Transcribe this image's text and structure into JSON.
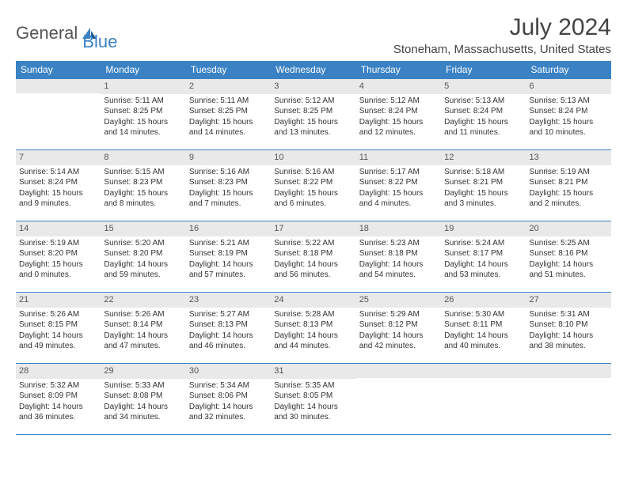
{
  "brand": {
    "general": "General",
    "blue": "Blue"
  },
  "title": {
    "month": "July 2024",
    "location": "Stoneham, Massachusetts, United States"
  },
  "colors": {
    "header_bg": "#3b82c4",
    "header_fg": "#ffffff",
    "daynum_bg": "#e9e9e9",
    "rule": "#3b82c4",
    "text": "#333333"
  },
  "weekdays": [
    "Sunday",
    "Monday",
    "Tuesday",
    "Wednesday",
    "Thursday",
    "Friday",
    "Saturday"
  ],
  "weeks": [
    [
      {
        "n": "",
        "sr": "",
        "ss": "",
        "dl": ""
      },
      {
        "n": "1",
        "sr": "Sunrise: 5:11 AM",
        "ss": "Sunset: 8:25 PM",
        "dl": "Daylight: 15 hours and 14 minutes."
      },
      {
        "n": "2",
        "sr": "Sunrise: 5:11 AM",
        "ss": "Sunset: 8:25 PM",
        "dl": "Daylight: 15 hours and 14 minutes."
      },
      {
        "n": "3",
        "sr": "Sunrise: 5:12 AM",
        "ss": "Sunset: 8:25 PM",
        "dl": "Daylight: 15 hours and 13 minutes."
      },
      {
        "n": "4",
        "sr": "Sunrise: 5:12 AM",
        "ss": "Sunset: 8:24 PM",
        "dl": "Daylight: 15 hours and 12 minutes."
      },
      {
        "n": "5",
        "sr": "Sunrise: 5:13 AM",
        "ss": "Sunset: 8:24 PM",
        "dl": "Daylight: 15 hours and 11 minutes."
      },
      {
        "n": "6",
        "sr": "Sunrise: 5:13 AM",
        "ss": "Sunset: 8:24 PM",
        "dl": "Daylight: 15 hours and 10 minutes."
      }
    ],
    [
      {
        "n": "7",
        "sr": "Sunrise: 5:14 AM",
        "ss": "Sunset: 8:24 PM",
        "dl": "Daylight: 15 hours and 9 minutes."
      },
      {
        "n": "8",
        "sr": "Sunrise: 5:15 AM",
        "ss": "Sunset: 8:23 PM",
        "dl": "Daylight: 15 hours and 8 minutes."
      },
      {
        "n": "9",
        "sr": "Sunrise: 5:16 AM",
        "ss": "Sunset: 8:23 PM",
        "dl": "Daylight: 15 hours and 7 minutes."
      },
      {
        "n": "10",
        "sr": "Sunrise: 5:16 AM",
        "ss": "Sunset: 8:22 PM",
        "dl": "Daylight: 15 hours and 6 minutes."
      },
      {
        "n": "11",
        "sr": "Sunrise: 5:17 AM",
        "ss": "Sunset: 8:22 PM",
        "dl": "Daylight: 15 hours and 4 minutes."
      },
      {
        "n": "12",
        "sr": "Sunrise: 5:18 AM",
        "ss": "Sunset: 8:21 PM",
        "dl": "Daylight: 15 hours and 3 minutes."
      },
      {
        "n": "13",
        "sr": "Sunrise: 5:19 AM",
        "ss": "Sunset: 8:21 PM",
        "dl": "Daylight: 15 hours and 2 minutes."
      }
    ],
    [
      {
        "n": "14",
        "sr": "Sunrise: 5:19 AM",
        "ss": "Sunset: 8:20 PM",
        "dl": "Daylight: 15 hours and 0 minutes."
      },
      {
        "n": "15",
        "sr": "Sunrise: 5:20 AM",
        "ss": "Sunset: 8:20 PM",
        "dl": "Daylight: 14 hours and 59 minutes."
      },
      {
        "n": "16",
        "sr": "Sunrise: 5:21 AM",
        "ss": "Sunset: 8:19 PM",
        "dl": "Daylight: 14 hours and 57 minutes."
      },
      {
        "n": "17",
        "sr": "Sunrise: 5:22 AM",
        "ss": "Sunset: 8:18 PM",
        "dl": "Daylight: 14 hours and 56 minutes."
      },
      {
        "n": "18",
        "sr": "Sunrise: 5:23 AM",
        "ss": "Sunset: 8:18 PM",
        "dl": "Daylight: 14 hours and 54 minutes."
      },
      {
        "n": "19",
        "sr": "Sunrise: 5:24 AM",
        "ss": "Sunset: 8:17 PM",
        "dl": "Daylight: 14 hours and 53 minutes."
      },
      {
        "n": "20",
        "sr": "Sunrise: 5:25 AM",
        "ss": "Sunset: 8:16 PM",
        "dl": "Daylight: 14 hours and 51 minutes."
      }
    ],
    [
      {
        "n": "21",
        "sr": "Sunrise: 5:26 AM",
        "ss": "Sunset: 8:15 PM",
        "dl": "Daylight: 14 hours and 49 minutes."
      },
      {
        "n": "22",
        "sr": "Sunrise: 5:26 AM",
        "ss": "Sunset: 8:14 PM",
        "dl": "Daylight: 14 hours and 47 minutes."
      },
      {
        "n": "23",
        "sr": "Sunrise: 5:27 AM",
        "ss": "Sunset: 8:13 PM",
        "dl": "Daylight: 14 hours and 46 minutes."
      },
      {
        "n": "24",
        "sr": "Sunrise: 5:28 AM",
        "ss": "Sunset: 8:13 PM",
        "dl": "Daylight: 14 hours and 44 minutes."
      },
      {
        "n": "25",
        "sr": "Sunrise: 5:29 AM",
        "ss": "Sunset: 8:12 PM",
        "dl": "Daylight: 14 hours and 42 minutes."
      },
      {
        "n": "26",
        "sr": "Sunrise: 5:30 AM",
        "ss": "Sunset: 8:11 PM",
        "dl": "Daylight: 14 hours and 40 minutes."
      },
      {
        "n": "27",
        "sr": "Sunrise: 5:31 AM",
        "ss": "Sunset: 8:10 PM",
        "dl": "Daylight: 14 hours and 38 minutes."
      }
    ],
    [
      {
        "n": "28",
        "sr": "Sunrise: 5:32 AM",
        "ss": "Sunset: 8:09 PM",
        "dl": "Daylight: 14 hours and 36 minutes."
      },
      {
        "n": "29",
        "sr": "Sunrise: 5:33 AM",
        "ss": "Sunset: 8:08 PM",
        "dl": "Daylight: 14 hours and 34 minutes."
      },
      {
        "n": "30",
        "sr": "Sunrise: 5:34 AM",
        "ss": "Sunset: 8:06 PM",
        "dl": "Daylight: 14 hours and 32 minutes."
      },
      {
        "n": "31",
        "sr": "Sunrise: 5:35 AM",
        "ss": "Sunset: 8:05 PM",
        "dl": "Daylight: 14 hours and 30 minutes."
      },
      {
        "n": "",
        "sr": "",
        "ss": "",
        "dl": ""
      },
      {
        "n": "",
        "sr": "",
        "ss": "",
        "dl": ""
      },
      {
        "n": "",
        "sr": "",
        "ss": "",
        "dl": ""
      }
    ]
  ]
}
